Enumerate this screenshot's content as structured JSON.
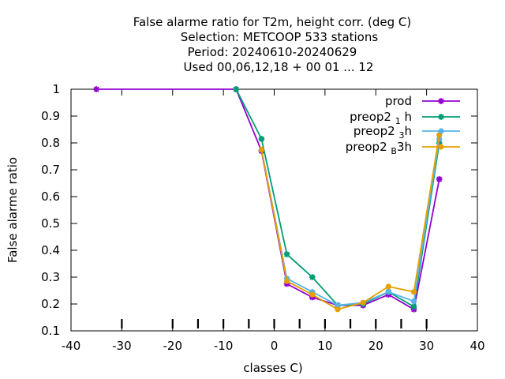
{
  "chart_data": {
    "type": "line",
    "title_lines": [
      "False alarme ratio  for T2m, height corr. (deg C)",
      "Selection: METCOOP    533 stations",
      "Period: 20240610-20240629",
      "Used  00,06,12,18 + 00 01 ... 12"
    ],
    "xlabel": "classes C)",
    "ylabel": "False alarme ratio",
    "xlim": [
      -40,
      40
    ],
    "ylim": [
      0.1,
      1.0
    ],
    "x_ticks": [
      -40,
      -30,
      -20,
      -10,
      0,
      10,
      20,
      30,
      40
    ],
    "y_ticks": [
      0.1,
      0.2,
      0.3,
      0.4,
      0.5,
      0.6,
      0.7,
      0.8,
      0.9,
      1.0
    ],
    "y_tick_labels": [
      "0.1",
      "0.2",
      "0.3",
      "0.4",
      "0.5",
      "0.6",
      "0.7",
      "0.8",
      "0.9",
      "1"
    ],
    "bottom_marks_x": [
      -30,
      -20,
      -15,
      -10,
      -5,
      0,
      5,
      10,
      15,
      20,
      25,
      30
    ],
    "legend_position": "top-right",
    "grid": false,
    "series": [
      {
        "name": "prod",
        "legend_main": "prod",
        "legend_sub": "",
        "legend_tail": "",
        "color": "#9400d3",
        "marker": "star",
        "x": [
          -35,
          -7.5,
          -2.5,
          2.5,
          7.5,
          12.5,
          17.5,
          22.5,
          27.5,
          32.5
        ],
        "y": [
          1.0,
          1.0,
          0.77,
          0.275,
          0.225,
          0.195,
          0.195,
          0.235,
          0.18,
          0.665
        ]
      },
      {
        "name": "preop2 1 h",
        "legend_main": "preop2 ",
        "legend_sub": "1",
        "legend_tail": " h",
        "color": "#009e73",
        "marker": "star",
        "x": [
          -7.5,
          -2.5,
          2.5,
          7.5,
          12.5,
          17.5,
          22.5,
          27.5,
          32.5
        ],
        "y": [
          1.0,
          0.815,
          0.385,
          0.3,
          0.195,
          0.2,
          0.245,
          0.19,
          0.8
        ]
      },
      {
        "name": "preop2 3 h",
        "legend_main": "preop2 ",
        "legend_sub": "3",
        "legend_tail": "h",
        "color": "#56b4e9",
        "marker": "dot",
        "x": [
          -2.5,
          2.5,
          7.5,
          12.5,
          17.5,
          22.5,
          27.5,
          32.5
        ],
        "y": [
          0.775,
          0.295,
          0.245,
          0.195,
          0.205,
          0.245,
          0.21,
          0.815
        ]
      },
      {
        "name": "preop2 B 3h",
        "legend_main": "preop2 ",
        "legend_sub": "B",
        "legend_tail": "3h",
        "color": "#e69f00",
        "marker": "dot",
        "x": [
          -2.5,
          2.5,
          7.5,
          12.5,
          17.5,
          22.5,
          27.5,
          32.5
        ],
        "y": [
          0.775,
          0.285,
          0.235,
          0.18,
          0.205,
          0.265,
          0.245,
          0.83
        ]
      }
    ]
  }
}
